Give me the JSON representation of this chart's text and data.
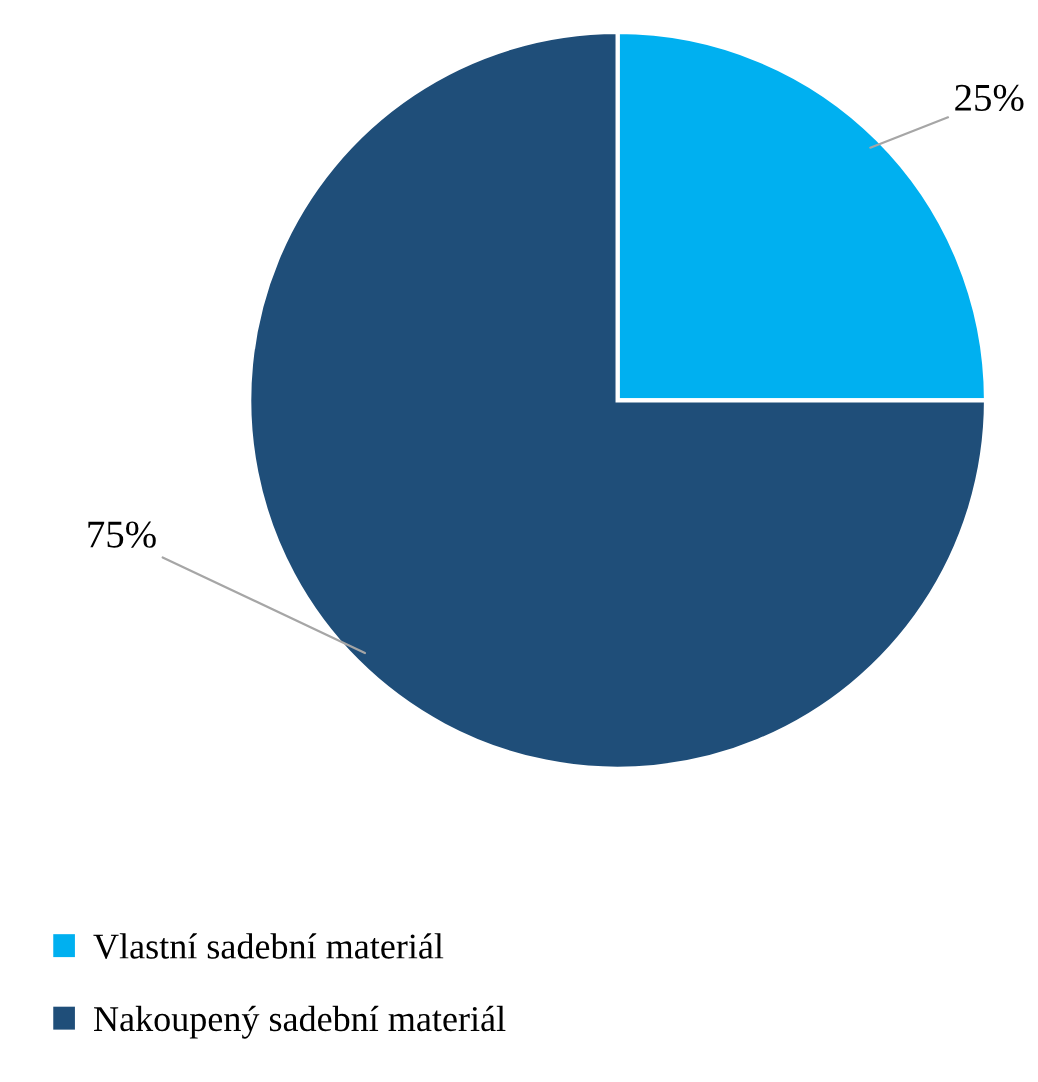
{
  "chart_data": {
    "type": "pie",
    "categories": [
      "Vlastní sadební materiál",
      "Nakoupený sadební materiál"
    ],
    "values": [
      25,
      75
    ],
    "value_labels": [
      "25%",
      "75%"
    ],
    "colors": [
      "#00b0f0",
      "#1f4e79"
    ],
    "legend": "bottom left"
  }
}
